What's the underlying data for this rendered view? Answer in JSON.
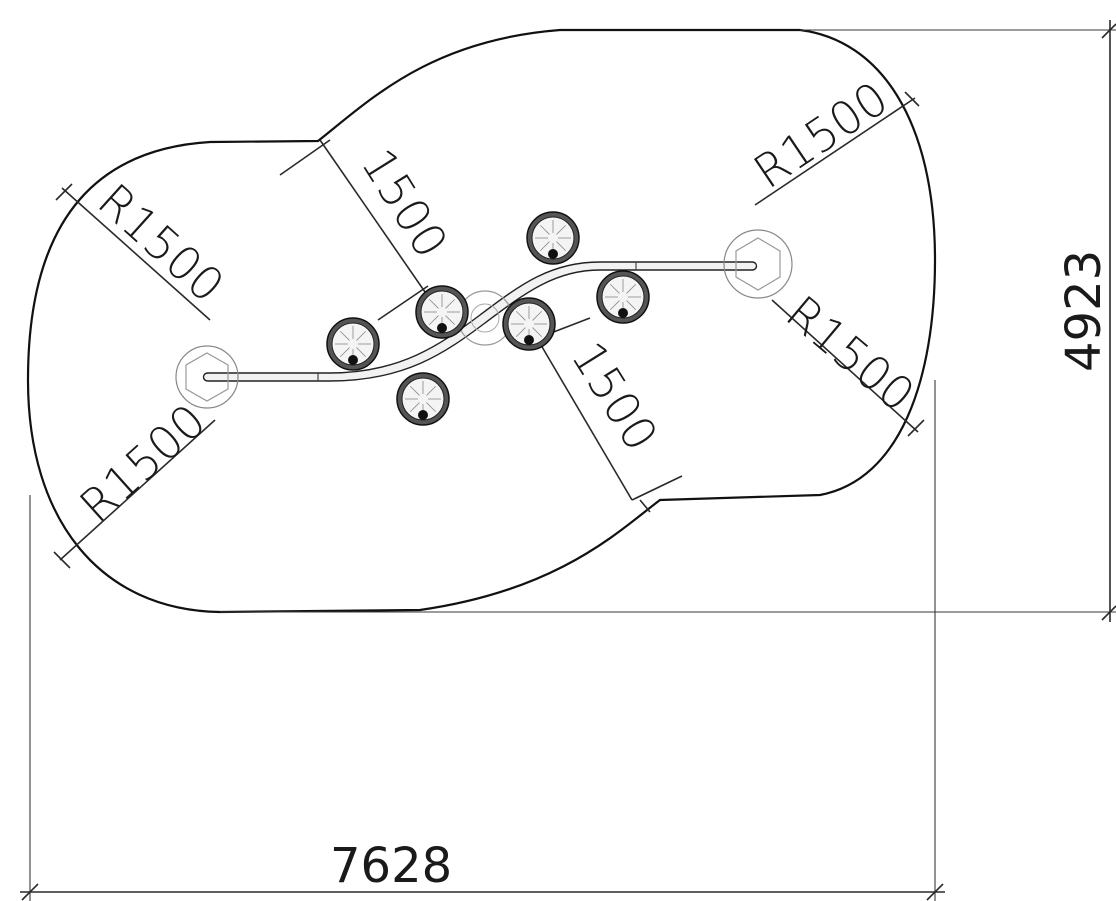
{
  "dimensions": {
    "overall_width": "7628",
    "overall_height": "4923",
    "radius_top_left": "R1500",
    "radius_top_right": "R1500",
    "radius_right": "R1500",
    "radius_bottom_left": "R1500",
    "clearance_upper": "1500",
    "clearance_lower": "1500"
  },
  "equipment": {
    "poles": 2,
    "discs": 6
  }
}
